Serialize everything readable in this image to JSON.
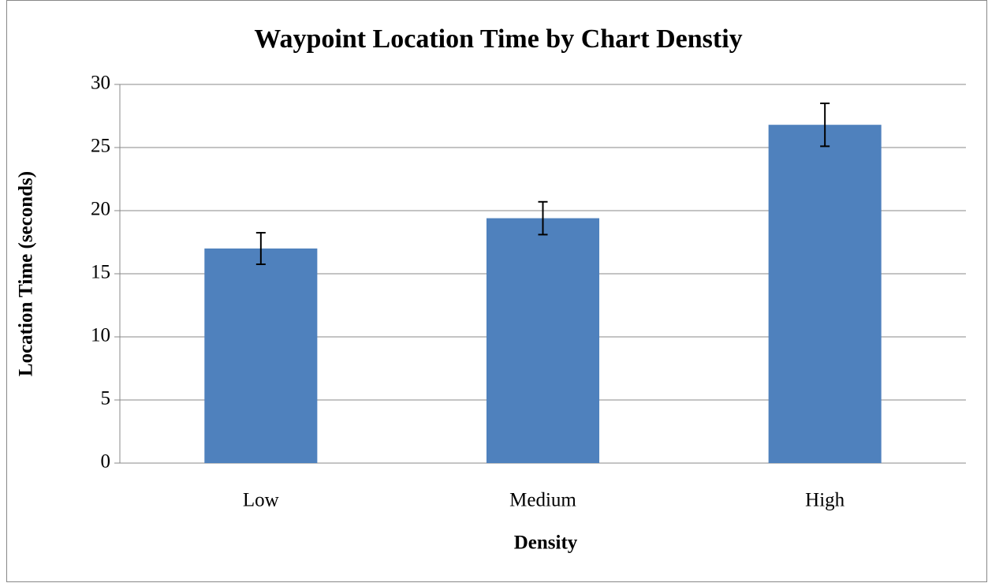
{
  "chart_data": {
    "type": "bar",
    "title": "Waypoint Location Time by Chart Denstiy",
    "x_label": "Density",
    "y_label": "Location Time (seconds)",
    "categories": [
      "Low",
      "Medium",
      "High"
    ],
    "values": [
      17.0,
      19.4,
      26.8
    ],
    "errors": [
      1.25,
      1.3,
      1.7
    ],
    "color": "#4f81bd",
    "ylim": [
      0,
      30
    ],
    "yticks": [
      0,
      5,
      10,
      15,
      20,
      25,
      30
    ],
    "grid": true
  }
}
